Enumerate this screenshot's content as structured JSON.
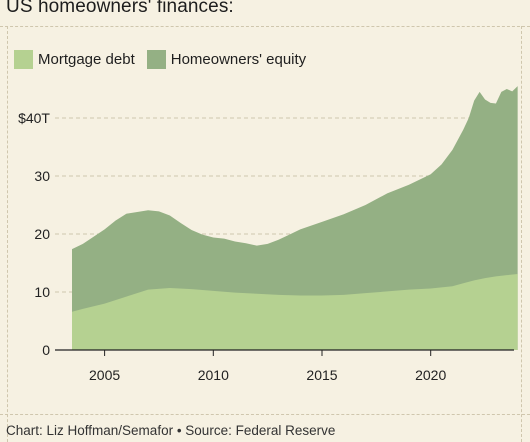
{
  "title": "US homeowners' finances:",
  "legend": [
    {
      "label": "Mortgage debt",
      "color": "#b5d191"
    },
    {
      "label": "Homeowners' equity",
      "color": "#94b084"
    }
  ],
  "source": "Chart: Liz Hoffman/Semafor • Source: Federal Reserve",
  "chart_data": {
    "type": "area",
    "stacked": true,
    "ylim": [
      0,
      40
    ],
    "xlim": [
      2003.5,
      2024.2
    ],
    "y_ticks": [
      0,
      10,
      20,
      30,
      40
    ],
    "y_tick_labels": [
      "0",
      "10",
      "20",
      "30",
      "$40T"
    ],
    "x_ticks": [
      2005,
      2010,
      2015,
      2020
    ],
    "x_tick_labels": [
      "2005",
      "2010",
      "2015",
      "2020"
    ],
    "grid": "horizontal-dashed",
    "legend_position": "top-left",
    "series": [
      {
        "name": "Mortgage debt",
        "color": "#b5d191",
        "points": [
          [
            2003.5,
            6.6
          ],
          [
            2004,
            7.1
          ],
          [
            2005,
            8.0
          ],
          [
            2006,
            9.2
          ],
          [
            2007,
            10.4
          ],
          [
            2008,
            10.7
          ],
          [
            2009,
            10.5
          ],
          [
            2010,
            10.2
          ],
          [
            2011,
            9.9
          ],
          [
            2012,
            9.7
          ],
          [
            2013,
            9.5
          ],
          [
            2014,
            9.4
          ],
          [
            2015,
            9.4
          ],
          [
            2016,
            9.5
          ],
          [
            2017,
            9.8
          ],
          [
            2018,
            10.1
          ],
          [
            2019,
            10.4
          ],
          [
            2020,
            10.6
          ],
          [
            2021,
            11.0
          ],
          [
            2021.5,
            11.5
          ],
          [
            2022,
            12.0
          ],
          [
            2022.5,
            12.4
          ],
          [
            2023,
            12.7
          ],
          [
            2023.5,
            12.9
          ],
          [
            2024,
            13.1
          ]
        ]
      },
      {
        "name": "Homeowners' equity",
        "color": "#94b084",
        "total_points": [
          [
            2003.5,
            17.4
          ],
          [
            2004,
            18.3
          ],
          [
            2005,
            20.8
          ],
          [
            2005.5,
            22.3
          ],
          [
            2006,
            23.5
          ],
          [
            2006.5,
            23.8
          ],
          [
            2007,
            24.1
          ],
          [
            2007.5,
            23.9
          ],
          [
            2008,
            23.2
          ],
          [
            2008.5,
            21.9
          ],
          [
            2009,
            20.7
          ],
          [
            2009.5,
            19.9
          ],
          [
            2010,
            19.4
          ],
          [
            2010.5,
            19.2
          ],
          [
            2011,
            18.7
          ],
          [
            2011.5,
            18.4
          ],
          [
            2012,
            18.0
          ],
          [
            2012.5,
            18.3
          ],
          [
            2013,
            19.0
          ],
          [
            2013.5,
            19.9
          ],
          [
            2014,
            20.8
          ],
          [
            2015,
            22.1
          ],
          [
            2016,
            23.4
          ],
          [
            2017,
            25.0
          ],
          [
            2018,
            27.0
          ],
          [
            2019,
            28.5
          ],
          [
            2020,
            30.3
          ],
          [
            2020.5,
            32.0
          ],
          [
            2021,
            34.5
          ],
          [
            2021.5,
            38.0
          ],
          [
            2021.75,
            40.0
          ],
          [
            2022,
            43.0
          ],
          [
            2022.25,
            44.5
          ],
          [
            2022.5,
            43.2
          ],
          [
            2022.75,
            42.6
          ],
          [
            2023,
            42.5
          ],
          [
            2023.25,
            44.5
          ],
          [
            2023.5,
            45.0
          ],
          [
            2023.75,
            44.6
          ],
          [
            2024,
            45.5
          ]
        ]
      }
    ]
  }
}
